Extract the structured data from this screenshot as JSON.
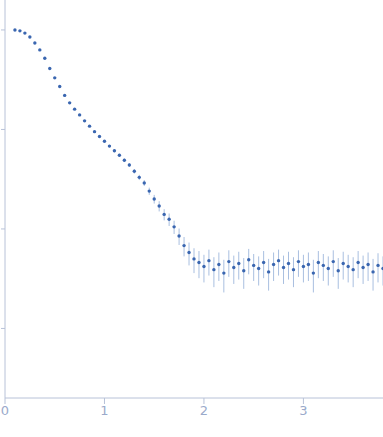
{
  "chart_data": {
    "type": "scatter",
    "log": "y",
    "tick_labels": "x",
    "color": "#3a66b0",
    "error_color": "#a9bfe0",
    "marker": "circle",
    "xlim": [
      0,
      3.8
    ],
    "xticks": [
      0,
      1,
      2,
      3
    ],
    "ylim": [
      0.0002,
      2
    ],
    "yticks": [
      0.001,
      0.01,
      0.1,
      1
    ],
    "x": [
      0.1,
      0.15,
      0.2,
      0.25,
      0.3,
      0.35,
      0.4,
      0.45,
      0.5,
      0.55,
      0.6,
      0.65,
      0.7,
      0.75,
      0.8,
      0.85,
      0.9,
      0.95,
      1.0,
      1.05,
      1.1,
      1.15,
      1.2,
      1.25,
      1.3,
      1.35,
      1.4,
      1.45,
      1.5,
      1.55,
      1.6,
      1.65,
      1.7,
      1.75,
      1.8,
      1.85,
      1.9,
      1.95,
      2.0,
      2.05,
      2.1,
      2.15,
      2.2,
      2.25,
      2.3,
      2.35,
      2.4,
      2.45,
      2.5,
      2.55,
      2.6,
      2.65,
      2.7,
      2.75,
      2.8,
      2.85,
      2.9,
      2.95,
      3.0,
      3.05,
      3.1,
      3.15,
      3.2,
      3.25,
      3.3,
      3.35,
      3.4,
      3.45,
      3.5,
      3.55,
      3.6,
      3.65,
      3.7,
      3.75,
      3.8
    ],
    "values": [
      1.0,
      0.98,
      0.93,
      0.85,
      0.74,
      0.63,
      0.52,
      0.41,
      0.33,
      0.27,
      0.22,
      0.185,
      0.16,
      0.14,
      0.122,
      0.108,
      0.095,
      0.085,
      0.076,
      0.068,
      0.061,
      0.055,
      0.049,
      0.044,
      0.038,
      0.033,
      0.029,
      0.024,
      0.02,
      0.017,
      0.014,
      0.0125,
      0.0105,
      0.0085,
      0.0068,
      0.0058,
      0.005,
      0.0046,
      0.0042,
      0.0048,
      0.0039,
      0.0044,
      0.0036,
      0.0047,
      0.0041,
      0.0045,
      0.0038,
      0.0049,
      0.0043,
      0.004,
      0.0046,
      0.0037,
      0.0044,
      0.0048,
      0.0041,
      0.0045,
      0.0039,
      0.0047,
      0.0042,
      0.0044,
      0.0036,
      0.0046,
      0.0043,
      0.004,
      0.0047,
      0.0038,
      0.0045,
      0.0042,
      0.0039,
      0.0046,
      0.0041,
      0.0044,
      0.0037,
      0.0043,
      0.004
    ],
    "errors": [
      0.005,
      0.005,
      0.005,
      0.005,
      0.004,
      0.004,
      0.003,
      0.003,
      0.003,
      0.002,
      0.002,
      0.002,
      0.002,
      0.002,
      0.002,
      0.002,
      0.002,
      0.002,
      0.002,
      0.002,
      0.002,
      0.002,
      0.002,
      0.002,
      0.002,
      0.002,
      0.002,
      0.002,
      0.002,
      0.002,
      0.0018,
      0.0018,
      0.0016,
      0.0016,
      0.0015,
      0.0015,
      0.0014,
      0.0014,
      0.0013,
      0.0014,
      0.0013,
      0.0014,
      0.0013,
      0.0014,
      0.0013,
      0.0014,
      0.0013,
      0.0014,
      0.0013,
      0.0013,
      0.0014,
      0.0013,
      0.0014,
      0.0014,
      0.0013,
      0.0014,
      0.0013,
      0.0014,
      0.0013,
      0.0014,
      0.0013,
      0.0014,
      0.0013,
      0.0013,
      0.0014,
      0.0013,
      0.0014,
      0.0013,
      0.0013,
      0.0014,
      0.0013,
      0.0014,
      0.0013,
      0.0014,
      0.0013
    ]
  }
}
